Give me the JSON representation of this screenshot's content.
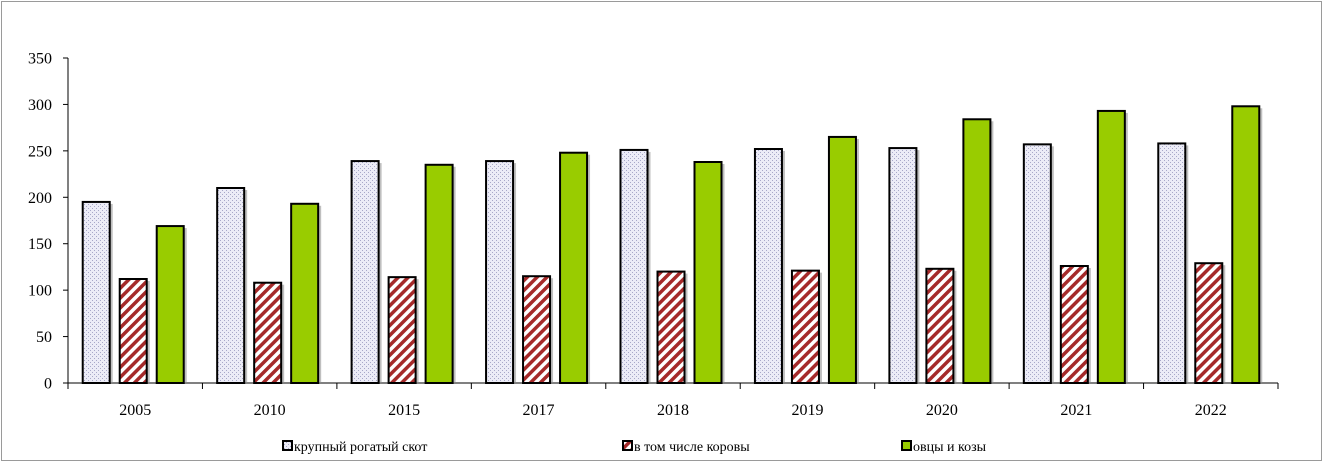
{
  "chart_data": {
    "type": "bar",
    "categories": [
      "2005",
      "2010",
      "2015",
      "2017",
      "2018",
      "2019",
      "2020",
      "2021",
      "2022"
    ],
    "series": [
      {
        "name": "крупный рогатый скот",
        "values": [
          195,
          210,
          239,
          239,
          251,
          252,
          253,
          257,
          258
        ],
        "color": "#e8e8f4",
        "pattern": "dotted"
      },
      {
        "name": "в том числе коровы",
        "values": [
          112,
          108,
          114,
          115,
          120,
          121,
          123,
          126,
          129
        ],
        "color": "#a52a2a",
        "pattern": "diagonal-hatch"
      },
      {
        "name": "овцы и козы",
        "values": [
          169,
          193,
          235,
          248,
          238,
          265,
          284,
          293,
          298
        ],
        "color": "#99cc00",
        "pattern": "solid"
      }
    ],
    "ylim": [
      0,
      350
    ],
    "yticks": [
      "0",
      "50",
      "100",
      "150",
      "200",
      "250",
      "300",
      "350"
    ],
    "grid": false,
    "legend_position": "bottom"
  }
}
